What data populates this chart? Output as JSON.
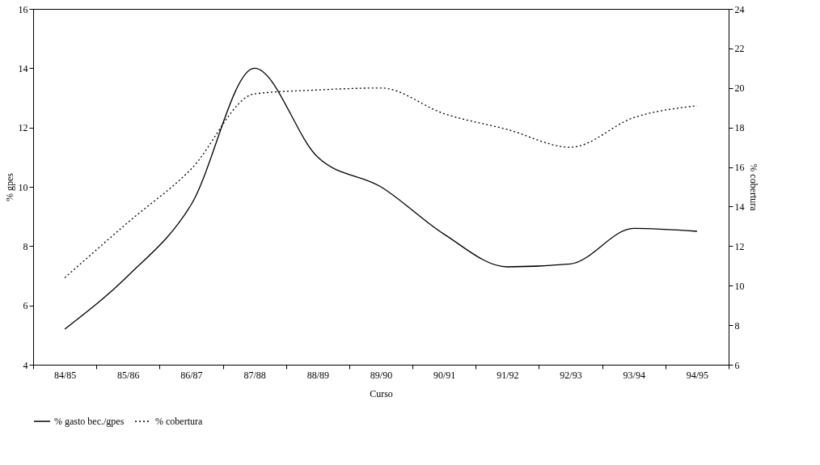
{
  "chart_data": {
    "type": "line",
    "xlabel": "Curso",
    "ylabel": "% gpes",
    "y2label": "% cobertura",
    "categories": [
      "84/85",
      "85/86",
      "86/87",
      "87/88",
      "88/89",
      "89/90",
      "90/91",
      "91/92",
      "92/93",
      "93/94",
      "94/95"
    ],
    "series": [
      {
        "name": "% gasto bec./gpes",
        "color": "#000000",
        "line_style": "solid",
        "values": [
          5.2,
          7.0,
          9.4,
          14.0,
          11.0,
          10.0,
          8.4,
          7.3,
          7.4,
          8.6,
          8.5
        ]
      },
      {
        "name": "% cobertura",
        "color": "#000000",
        "line_style": "dotted",
        "axis": "y2",
        "values": [
          10.4,
          13.2,
          15.9,
          19.7,
          19.9,
          20.0,
          18.7,
          17.9,
          17.0,
          18.5,
          19.1
        ]
      }
    ],
    "ylim": [
      4,
      16
    ],
    "yticks": [
      4,
      6,
      8,
      10,
      12,
      14,
      16
    ],
    "y2lim": [
      6,
      24
    ],
    "y2ticks": [
      6,
      8,
      10,
      12,
      14,
      16,
      18,
      20,
      22,
      24
    ],
    "grid": false,
    "legend": "bottom",
    "marker": "none"
  }
}
